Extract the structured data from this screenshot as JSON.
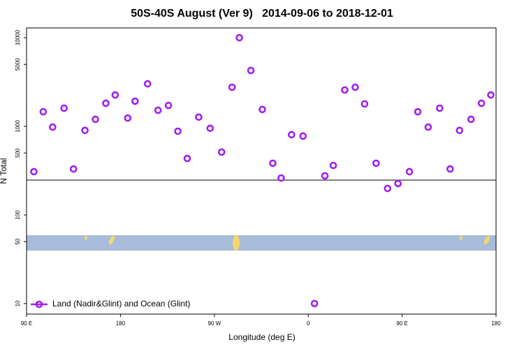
{
  "chart_data": {
    "type": "scatter",
    "title": "50S-40S August (Ver 9)   2014-09-06 to 2018-12-01",
    "xlabel": "Longitude (deg E)",
    "ylabel": "N Total",
    "log_y": true,
    "legend_position": "bottom-left",
    "xlim": [
      90,
      540
    ],
    "ylim": [
      7.6,
      12900
    ],
    "xticks": [
      {
        "value": 90,
        "label": "90 E"
      },
      {
        "value": 180,
        "label": "180"
      },
      {
        "value": 270,
        "label": "90 W"
      },
      {
        "value": 360,
        "label": "0"
      },
      {
        "value": 450,
        "label": "90 E"
      },
      {
        "value": 540,
        "label": "180"
      }
    ],
    "yticks": [
      10,
      50,
      100,
      500,
      1000,
      5000,
      10000
    ],
    "series": [
      {
        "name": "Land (Nadir&Glint) and Ocean (Glint)",
        "color": "#a020f0",
        "x": [
          97,
          106,
          115,
          126,
          135,
          146,
          156,
          166,
          175,
          187,
          194,
          206,
          216,
          226,
          235,
          244,
          255,
          266,
          277,
          287,
          294,
          305,
          316,
          326,
          334,
          344,
          355,
          366,
          376,
          384,
          395,
          405,
          414,
          425,
          436,
          446,
          457,
          465,
          475,
          486,
          496,
          505,
          516,
          526,
          535
        ],
        "values": [
          308,
          1460,
          980,
          1600,
          330,
          900,
          1200,
          1820,
          2260,
          1240,
          1920,
          3020,
          1520,
          1720,
          880,
          434,
          1270,
          950,
          512,
          2760,
          10000,
          4270,
          1550,
          383,
          261,
          805,
          776,
          10,
          276,
          362,
          2570,
          2760,
          1790,
          383,
          199,
          226,
          308,
          1460,
          980,
          1600,
          330,
          900,
          1200,
          1820,
          2260
        ]
      }
    ]
  }
}
